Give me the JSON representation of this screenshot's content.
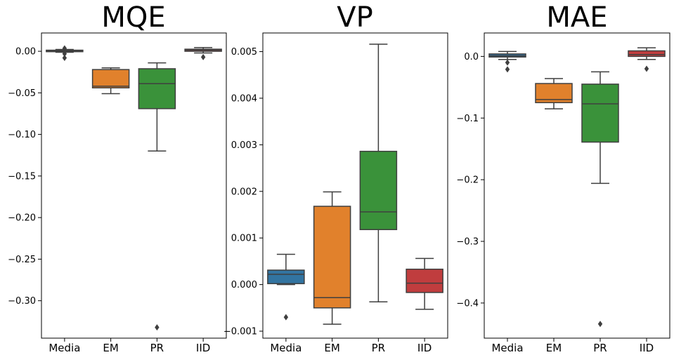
{
  "colors": {
    "Media": "#3274a1",
    "EM": "#e1812c",
    "PR": "#3a923a",
    "IID": "#c03d3e",
    "line": "#3f3f3f"
  },
  "chart_data": [
    {
      "type": "box",
      "title": "MQE",
      "categories": [
        "Media",
        "EM",
        "PR",
        "IID"
      ],
      "ylim": [
        -0.345,
        0.022
      ],
      "yticks": [
        0.0,
        -0.05,
        -0.1,
        -0.15,
        -0.2,
        -0.25,
        -0.3
      ],
      "tick_labels": [
        "0.00",
        "−0.05",
        "−0.10",
        "−0.15",
        "−0.20",
        "−0.25",
        "−0.30"
      ],
      "boxes": [
        {
          "whislo": -0.0012,
          "q1": -0.0005,
          "med": 0.0003,
          "q3": 0.0013,
          "whishi": 0.0022,
          "fliers": [
            0.0035,
            -0.003,
            -0.008
          ]
        },
        {
          "whislo": -0.051,
          "q1": -0.044,
          "med": -0.042,
          "q3": -0.022,
          "whishi": -0.02,
          "fliers": []
        },
        {
          "whislo": -0.12,
          "q1": -0.069,
          "med": -0.039,
          "q3": -0.021,
          "whishi": -0.014,
          "fliers": [
            -0.332
          ]
        },
        {
          "whislo": -0.002,
          "q1": 0.0,
          "med": 0.0013,
          "q3": 0.0025,
          "whishi": 0.0045,
          "fliers": [
            -0.007
          ]
        }
      ]
    },
    {
      "type": "box",
      "title": "VP",
      "categories": [
        "Media",
        "EM",
        "PR",
        "IID"
      ],
      "ylim": [
        -0.00115,
        0.0054
      ],
      "yticks": [
        -0.001,
        0.0,
        0.001,
        0.002,
        0.003,
        0.004,
        0.005
      ],
      "tick_labels": [
        "−0.001",
        "0.000",
        "0.001",
        "0.002",
        "0.003",
        "0.004",
        "0.005"
      ],
      "boxes": [
        {
          "whislo": 0.0,
          "q1": 2e-05,
          "med": 0.00022,
          "q3": 0.00031,
          "whishi": 0.00065,
          "fliers": [
            -0.0007
          ]
        },
        {
          "whislo": -0.00085,
          "q1": -0.0005,
          "med": -0.00028,
          "q3": 0.00168,
          "whishi": 0.00199,
          "fliers": []
        },
        {
          "whislo": -0.00037,
          "q1": 0.00118,
          "med": 0.00156,
          "q3": 0.00286,
          "whishi": 0.00516,
          "fliers": []
        },
        {
          "whislo": -0.00053,
          "q1": -0.00017,
          "med": 3e-05,
          "q3": 0.00033,
          "whishi": 0.00056,
          "fliers": []
        }
      ]
    },
    {
      "type": "box",
      "title": "MAE",
      "categories": [
        "Media",
        "EM",
        "PR",
        "IID"
      ],
      "ylim": [
        -0.457,
        0.038
      ],
      "yticks": [
        0.0,
        -0.1,
        -0.2,
        -0.3,
        -0.4
      ],
      "tick_labels": [
        "0.0",
        "−0.1",
        "−0.2",
        "−0.3",
        "−0.4"
      ],
      "boxes": [
        {
          "whislo": -0.005,
          "q1": -0.001,
          "med": 0.001,
          "q3": 0.004,
          "whishi": 0.008,
          "fliers": [
            -0.01,
            -0.021
          ]
        },
        {
          "whislo": -0.085,
          "q1": -0.075,
          "med": -0.07,
          "q3": -0.044,
          "whishi": -0.036,
          "fliers": []
        },
        {
          "whislo": -0.206,
          "q1": -0.139,
          "med": -0.077,
          "q3": -0.045,
          "whishi": -0.025,
          "fliers": [
            -0.434
          ]
        },
        {
          "whislo": -0.005,
          "q1": 0.0,
          "med": 0.003,
          "q3": 0.009,
          "whishi": 0.014,
          "fliers": [
            -0.02
          ]
        }
      ]
    }
  ]
}
